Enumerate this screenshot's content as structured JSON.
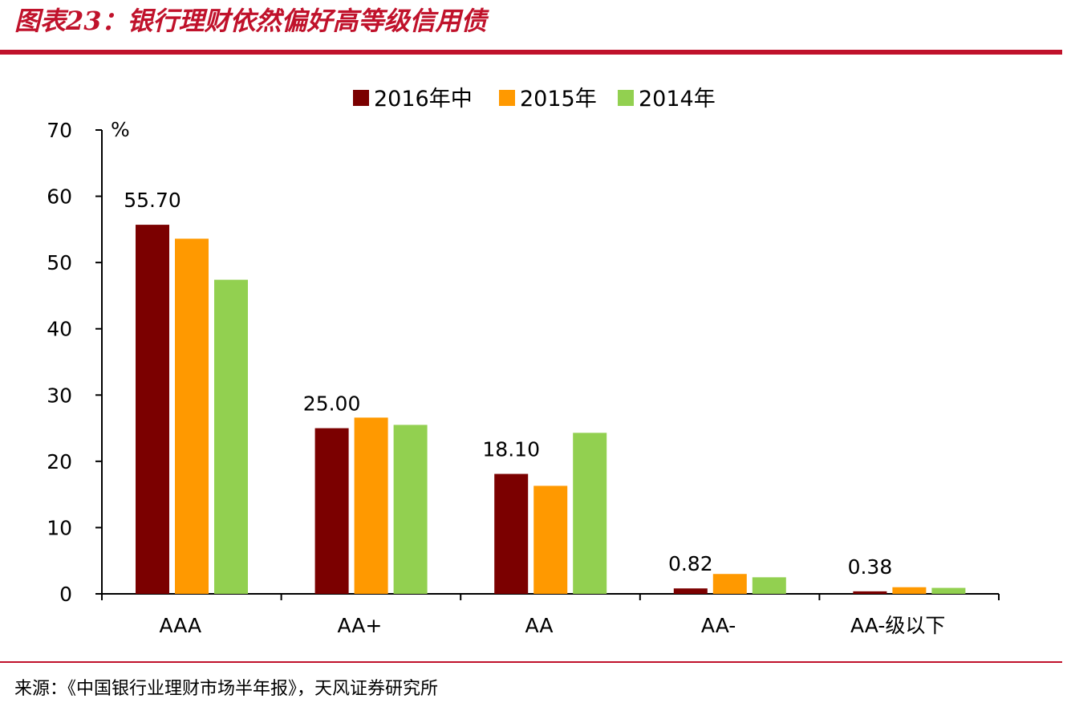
{
  "header": {
    "title": "图表23：银行理财依然偏好高等级信用债"
  },
  "footer": {
    "source": "来源：《中国银行业理财市场半年报》，天风证券研究所"
  },
  "colors": {
    "brand": "#c0122b"
  },
  "chart_data": {
    "type": "bar",
    "categories": [
      "AAA",
      "AA+",
      "AA",
      "AA-",
      "AA-级以下"
    ],
    "series": [
      {
        "name": "2016年中",
        "color": "#7b0000",
        "values": [
          55.7,
          25.0,
          18.1,
          0.82,
          0.38
        ]
      },
      {
        "name": "2015年",
        "color": "#ff9900",
        "values": [
          53.6,
          26.6,
          16.3,
          3.0,
          1.0
        ]
      },
      {
        "name": "2014年",
        "color": "#92d050",
        "values": [
          47.4,
          25.5,
          24.3,
          2.5,
          0.9
        ]
      }
    ],
    "data_labels": {
      "series_index": 0,
      "labels": [
        "55.70",
        "25.00",
        "18.10",
        "0.82",
        "0.38"
      ]
    },
    "ylabel": "%",
    "ylim": [
      0,
      70
    ],
    "yticks": [
      0,
      10,
      20,
      30,
      40,
      50,
      60,
      70
    ],
    "legend": "top-center",
    "grid": false
  }
}
